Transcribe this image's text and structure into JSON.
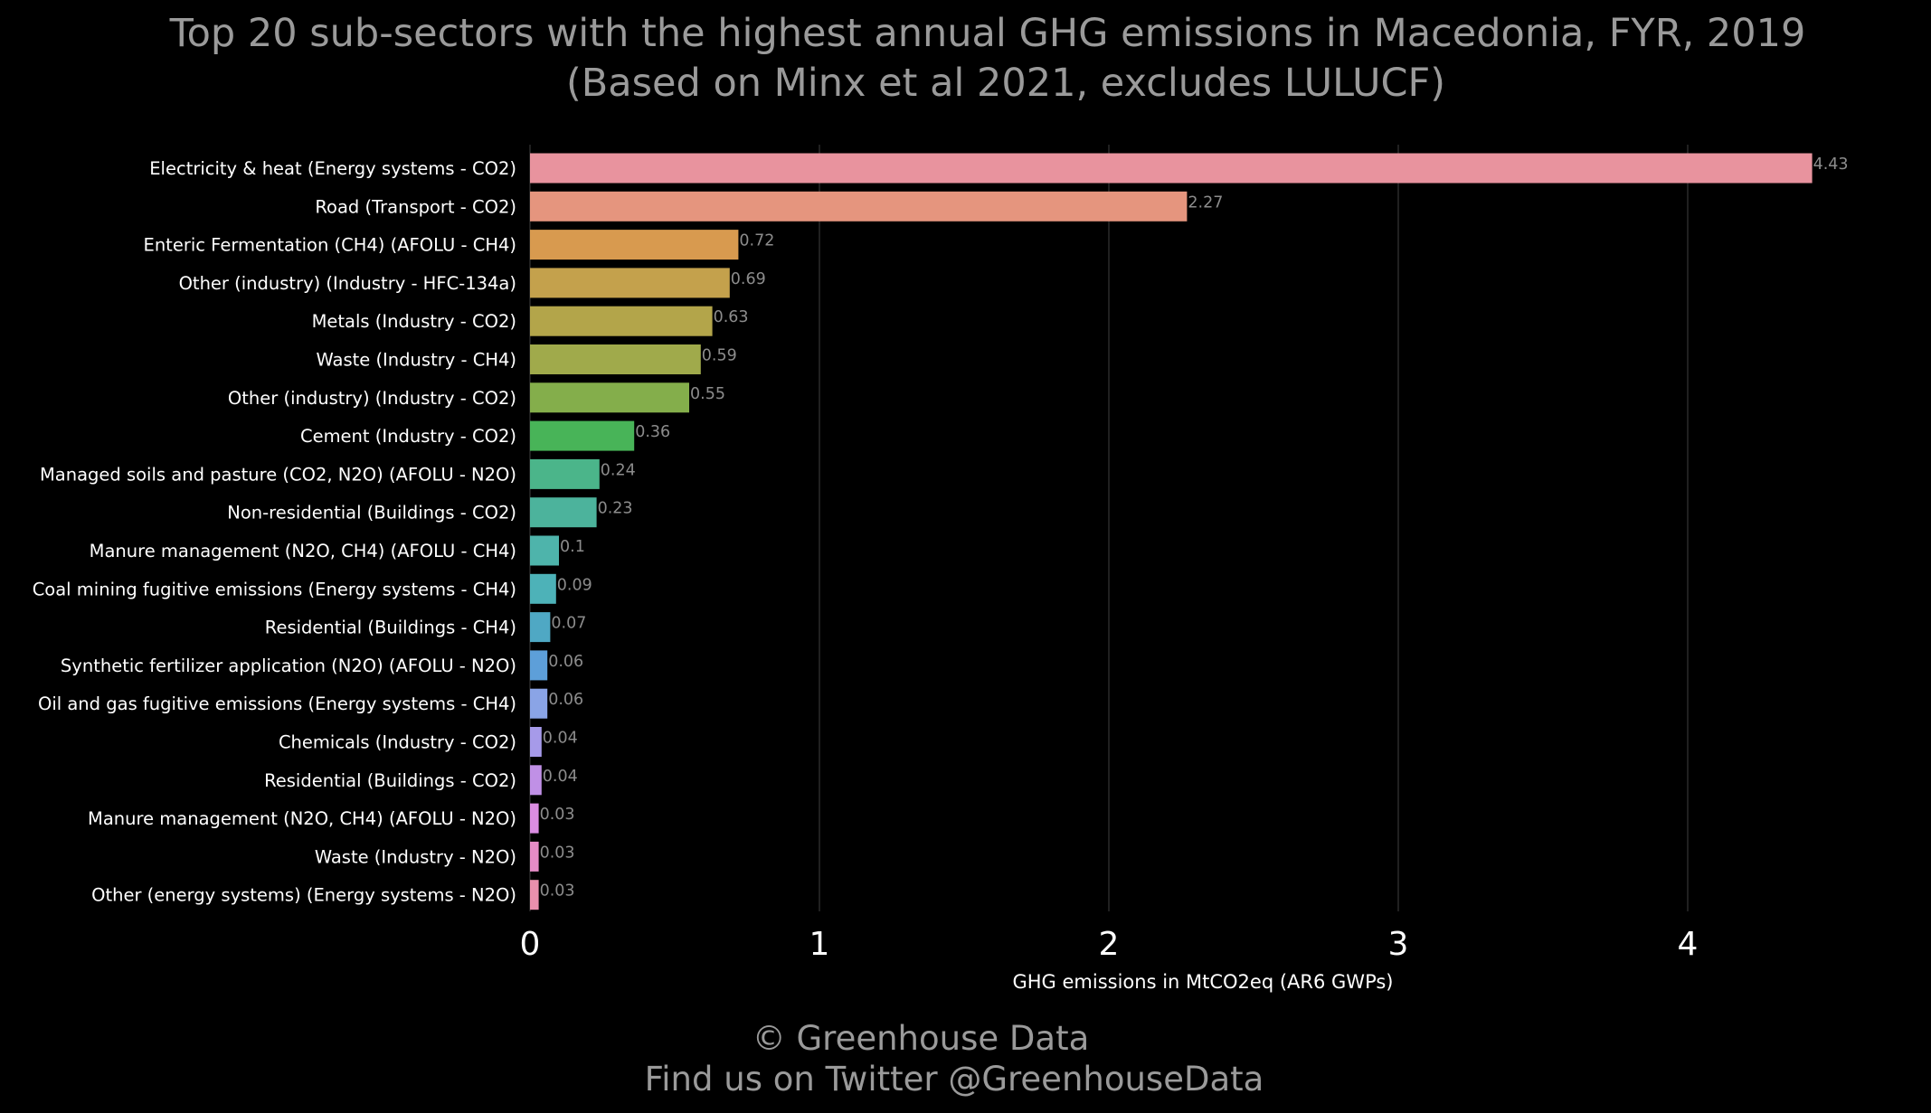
{
  "chart_data": {
    "type": "bar",
    "orientation": "horizontal",
    "title": "Top 20 sub-sectors with the highest annual GHG emissions in Macedonia, FYR, 2019",
    "subtitle": "(Based on Minx et al 2021, excludes LULUCF)",
    "xlabel": "GHG emissions in MtCO2eq (AR6 GWPs)",
    "ylabel": "",
    "xlim": [
      0,
      4.6
    ],
    "x_ticks": [
      "0",
      "1",
      "2",
      "3",
      "4"
    ],
    "grid": "vertical",
    "categories": [
      "Electricity & heat (Energy systems - CO2)",
      "Road (Transport - CO2)",
      "Enteric Fermentation (CH4) (AFOLU - CH4)",
      "Other (industry) (Industry - HFC-134a)",
      "Metals (Industry - CO2)",
      "Waste (Industry - CH4)",
      "Other (industry) (Industry - CO2)",
      "Cement (Industry - CO2)",
      "Managed soils and pasture (CO2, N2O) (AFOLU - N2O)",
      "Non-residential (Buildings - CO2)",
      "Manure management (N2O, CH4) (AFOLU - CH4)",
      "Coal mining fugitive emissions (Energy systems - CH4)",
      "Residential (Buildings - CH4)",
      "Synthetic fertilizer application (N2O) (AFOLU - N2O)",
      "Oil and gas fugitive emissions (Energy systems - CH4)",
      "Chemicals (Industry - CO2)",
      "Residential (Buildings - CO2)",
      "Manure management (N2O, CH4) (AFOLU - N2O)",
      "Waste (Industry - N2O)",
      "Other (energy systems) (Energy systems - N2O)"
    ],
    "values": [
      4.43,
      2.27,
      0.72,
      0.69,
      0.63,
      0.59,
      0.55,
      0.36,
      0.24,
      0.23,
      0.1,
      0.09,
      0.07,
      0.06,
      0.06,
      0.04,
      0.04,
      0.03,
      0.03,
      0.03
    ],
    "value_labels": [
      "4.43",
      "2.27",
      "0.72",
      "0.69",
      "0.63",
      "0.59",
      "0.55",
      "0.36",
      "0.24",
      "0.23",
      "0.1",
      "0.09",
      "0.07",
      "0.06",
      "0.06",
      "0.04",
      "0.04",
      "0.03",
      "0.03",
      "0.03"
    ],
    "colors": [
      "#e8939e",
      "#e5957e",
      "#d89a4f",
      "#c4a14c",
      "#b3a54a",
      "#a0aa4b",
      "#84ae4b",
      "#48b458",
      "#4bb58a",
      "#4cb39c",
      "#4eb4ab",
      "#4db2b8",
      "#4fa8c4",
      "#5d9fd9",
      "#8aa4e6",
      "#a69ae9",
      "#c090e6",
      "#db8de2",
      "#e58cc6",
      "#e990ad"
    ]
  },
  "credits": {
    "line1": "© Greenhouse Data",
    "line2": "Find us on Twitter @GreenhouseData"
  },
  "colors": {
    "background": "#000000",
    "title": "#9a9a9a",
    "labels": "#ffffff",
    "data_labels": "#8c8c8c",
    "grid": "#2a2a2a"
  }
}
